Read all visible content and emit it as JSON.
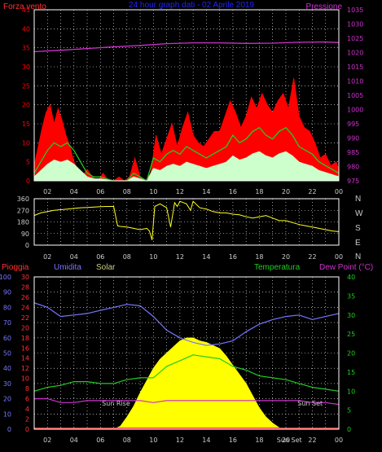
{
  "colors": {
    "background": "#000000",
    "grid": "#ffffff",
    "wind_gust": "#ff0000",
    "wind_avg": "#22cc22",
    "wind_min": "#ccffcc",
    "pressure": "#cc33cc",
    "direction": "#ffff22",
    "humidity": "#7777ff",
    "temperature": "#22cc22",
    "dewpoint": "#cc33cc",
    "rain": "#ff3333",
    "solar": "#ffff00",
    "title": "#2222ff"
  },
  "chart_data": [
    {
      "type": "area",
      "panel": "wind-pressure",
      "title": "24 hour graph dati - 02 Aprile 2019",
      "left_label": "Forza vento",
      "right_label": "Pressione",
      "x_ticks": [
        "02",
        "04",
        "06",
        "08",
        "10",
        "12",
        "14",
        "16",
        "18",
        "20",
        "22",
        "00"
      ],
      "y_left_ticks": [
        "0",
        "5",
        "10",
        "15",
        "20",
        "25",
        "30",
        "35",
        "40",
        "45"
      ],
      "y_left_range": [
        0,
        45
      ],
      "y_right_ticks": [
        "975",
        "980",
        "985",
        "990",
        "995",
        "1000",
        "1005",
        "1010",
        "1015",
        "1020",
        "1025",
        "1030",
        "1035"
      ],
      "y_right_range": [
        975,
        1035
      ],
      "grid": true,
      "series": [
        {
          "name": "Forza vento",
          "kind": "gust",
          "x": [
            1.0,
            1.3,
            1.6,
            1.9,
            2.2,
            2.5,
            2.8,
            3.1,
            3.4,
            3.7,
            4.0,
            4.3,
            4.6,
            5.0,
            5.4,
            5.8,
            6.2,
            6.6,
            7.0,
            7.4,
            7.8,
            8.2,
            8.6,
            9.0,
            9.4,
            9.8,
            10.2,
            10.6,
            11.0,
            11.4,
            11.8,
            12.2,
            12.6,
            13.0,
            13.4,
            13.8,
            14.2,
            14.6,
            15.0,
            15.4,
            15.8,
            16.2,
            16.6,
            17.0,
            17.4,
            17.8,
            18.2,
            18.6,
            19.0,
            19.4,
            19.8,
            20.2,
            20.6,
            21.0,
            21.4,
            21.8,
            22.2,
            22.6,
            23.0,
            23.4,
            23.8,
            24.0
          ],
          "values": [
            4,
            9,
            14,
            18,
            20,
            15,
            19,
            16,
            12,
            9,
            5,
            3,
            1,
            3,
            1,
            0,
            2,
            0,
            0,
            1,
            0,
            1,
            6,
            1,
            0,
            2,
            12,
            7,
            11,
            15,
            9,
            14,
            18,
            12,
            10,
            9,
            11,
            13,
            13,
            17,
            21,
            18,
            14,
            17,
            22,
            19,
            23,
            20,
            18,
            21,
            23,
            19,
            27,
            17,
            14,
            13,
            10,
            6,
            7,
            4,
            5,
            3
          ]
        },
        {
          "name": "Forza vento",
          "kind": "average",
          "x": [
            1.0,
            1.5,
            2.0,
            2.5,
            3.0,
            3.5,
            4.0,
            4.5,
            5.0,
            5.5,
            6.0,
            7.0,
            8.0,
            8.5,
            9.0,
            9.5,
            10.0,
            10.5,
            11.0,
            11.5,
            12.0,
            12.5,
            13.0,
            13.5,
            14.0,
            14.5,
            15.0,
            15.5,
            16.0,
            16.5,
            17.0,
            17.5,
            18.0,
            18.5,
            19.0,
            19.5,
            20.0,
            20.5,
            21.0,
            21.5,
            22.0,
            22.5,
            23.0,
            23.5,
            24.0
          ],
          "values": [
            2,
            5,
            8,
            10,
            9,
            10,
            8,
            5,
            2,
            1,
            1,
            0,
            0,
            2,
            1,
            0,
            6,
            5,
            7,
            8,
            7,
            9,
            8,
            7,
            6,
            7,
            8,
            9,
            12,
            10,
            11,
            13,
            14,
            12,
            11,
            13,
            14,
            12,
            9,
            8,
            7,
            5,
            4,
            3,
            2
          ]
        },
        {
          "name": "Pressione",
          "kind": "pressure",
          "x": [
            1,
            3,
            5,
            7,
            9,
            11,
            13,
            15,
            17,
            19,
            21,
            23,
            24
          ],
          "values": [
            1020.3,
            1020.8,
            1021.4,
            1022.0,
            1022.5,
            1023.1,
            1023.4,
            1023.4,
            1023.2,
            1023.3,
            1023.6,
            1023.7,
            1023.5
          ]
        }
      ]
    },
    {
      "type": "scatter",
      "panel": "wind-direction",
      "y_ticks": [
        "0",
        "90",
        "180",
        "270",
        "360"
      ],
      "y_range": [
        0,
        360
      ],
      "compass_labels": [
        "N",
        "W",
        "S",
        "E",
        "N"
      ],
      "x_ticks": [
        "02",
        "04",
        "06",
        "08",
        "10",
        "12",
        "14",
        "16",
        "18",
        "20",
        "22",
        "00"
      ],
      "grid": true,
      "series": [
        {
          "name": "Direzione",
          "x": [
            1.0,
            1.5,
            2.0,
            2.5,
            3.0,
            3.5,
            4.0,
            4.5,
            5.0,
            5.5,
            6.0,
            6.5,
            7.0,
            7.3,
            7.5,
            8.0,
            8.5,
            9.0,
            9.5,
            9.7,
            9.9,
            10.1,
            10.5,
            11.0,
            11.3,
            11.6,
            11.8,
            12.0,
            12.5,
            12.8,
            13.0,
            13.5,
            14.0,
            14.5,
            15.0,
            15.5,
            16.0,
            16.5,
            17.0,
            17.5,
            18.0,
            18.5,
            19.0,
            19.5,
            20.0,
            20.5,
            21.0,
            21.5,
            22.0,
            22.5,
            23.0,
            23.5,
            24.0
          ],
          "values": [
            230,
            250,
            260,
            270,
            275,
            280,
            285,
            290,
            292,
            295,
            298,
            300,
            300,
            150,
            145,
            140,
            130,
            120,
            130,
            110,
            40,
            300,
            320,
            290,
            140,
            330,
            300,
            340,
            320,
            270,
            340,
            290,
            280,
            260,
            250,
            250,
            240,
            235,
            220,
            210,
            220,
            230,
            210,
            190,
            190,
            175,
            160,
            150,
            140,
            130,
            120,
            110,
            105
          ]
        }
      ]
    },
    {
      "type": "line",
      "panel": "humidity-temp",
      "labels_left": [
        "Pioggia",
        "Umidita",
        "Solar"
      ],
      "labels_right": [
        "Temperatura",
        "Dew Point (°C)"
      ],
      "humidity_ticks": [
        "0",
        "10",
        "20",
        "30",
        "40",
        "50",
        "60",
        "70",
        "80",
        "90",
        "100"
      ],
      "humidity_range": [
        0,
        100
      ],
      "rain_ticks": [
        "0",
        "2",
        "4",
        "6",
        "8",
        "10",
        "12",
        "14",
        "16",
        "18",
        "20",
        "22",
        "24",
        "26",
        "28",
        "30"
      ],
      "rain_range": [
        0,
        30
      ],
      "temp_ticks": [
        "0",
        "5",
        "10",
        "15",
        "20",
        "25",
        "30",
        "35",
        "40"
      ],
      "temp_range": [
        0,
        40
      ],
      "x_ticks": [
        "02",
        "04",
        "06",
        "08",
        "10",
        "12",
        "14",
        "16",
        "18",
        "20",
        "22",
        "00"
      ],
      "annotations": [
        {
          "text": "Sun Rise",
          "x": 7.3
        },
        {
          "text": "Sun Set",
          "x": 20.6
        },
        {
          "text": "Sun Set",
          "x": 20.2
        }
      ],
      "grid": true,
      "series": [
        {
          "name": "Umidita",
          "x": [
            1,
            2,
            3,
            4,
            5,
            6,
            7,
            8,
            9,
            10,
            11,
            12,
            13,
            14,
            15,
            16,
            17,
            18,
            19,
            20,
            21,
            22,
            23,
            24
          ],
          "values": [
            83,
            80,
            74,
            75,
            76,
            78,
            80,
            82,
            81,
            74,
            65,
            60,
            57,
            55,
            56,
            58,
            64,
            69,
            72,
            74,
            75,
            72,
            74,
            76
          ]
        },
        {
          "name": "Temperatura",
          "x": [
            1,
            2,
            3,
            4,
            5,
            6,
            7,
            8,
            9,
            10,
            11,
            12,
            13,
            14,
            15,
            16,
            17,
            18,
            19,
            20,
            21,
            22,
            23,
            24
          ],
          "values": [
            10.0,
            11.0,
            11.5,
            12.5,
            12.5,
            12.0,
            12.0,
            13.0,
            13.5,
            13.5,
            16.5,
            18.0,
            19.5,
            19.0,
            18.5,
            16.5,
            15.5,
            14.0,
            13.5,
            13.0,
            12.0,
            11.0,
            10.5,
            10.0
          ]
        },
        {
          "name": "Dew Point",
          "x": [
            1,
            2,
            3,
            4,
            5,
            6,
            7,
            8,
            9,
            10,
            11,
            12,
            13,
            14,
            15,
            16,
            17,
            18,
            19,
            20,
            21,
            22,
            23,
            24
          ],
          "values": [
            8.0,
            8.0,
            7.0,
            7.0,
            7.5,
            7.5,
            7.5,
            7.5,
            7.5,
            7.0,
            7.5,
            7.5,
            7.5,
            7.5,
            7.5,
            7.5,
            7.5,
            7.5,
            7.5,
            7.5,
            7.5,
            7.0,
            7.0,
            6.5
          ]
        },
        {
          "name": "Solar",
          "x": [
            7.0,
            7.5,
            8.0,
            8.5,
            9.0,
            9.5,
            10.0,
            10.5,
            11.0,
            11.5,
            12.0,
            12.5,
            13.0,
            13.5,
            14.0,
            14.5,
            15.0,
            15.5,
            16.0,
            16.5,
            17.0,
            17.5,
            18.0,
            18.5,
            19.0,
            19.5,
            20.0
          ],
          "values": [
            0,
            2,
            8,
            15,
            24,
            32,
            40,
            46,
            50,
            54,
            58,
            60,
            60,
            58,
            57,
            55,
            53,
            48,
            42,
            36,
            30,
            22,
            14,
            8,
            4,
            1,
            0
          ]
        },
        {
          "name": "Pioggia",
          "x": [
            1,
            24
          ],
          "values": [
            0,
            0
          ]
        }
      ]
    }
  ]
}
